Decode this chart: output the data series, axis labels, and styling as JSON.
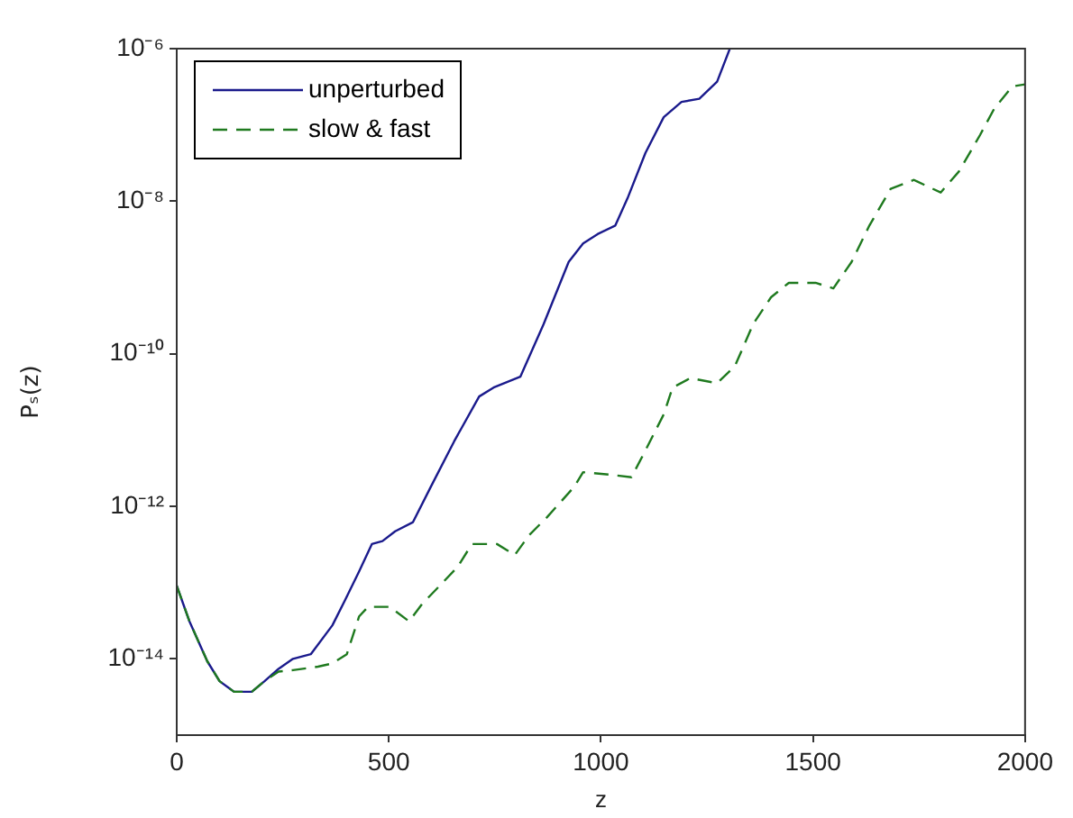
{
  "chart_data": {
    "type": "line",
    "xlabel": "z",
    "ylabel": "Pₛ(z)",
    "log": "y",
    "grid": false,
    "legend": "top left",
    "marker": "none",
    "xlim": [
      0,
      2000
    ],
    "xticks": [
      0,
      500,
      1000,
      1500,
      2000
    ],
    "ylim": [
      1e-15,
      1e-06
    ],
    "yticks": [
      {
        "value": 1e-14,
        "label": "10⁻¹⁴"
      },
      {
        "value": 1e-12,
        "label": "10⁻¹²"
      },
      {
        "value": 1e-10,
        "label": "10⁻¹⁰"
      },
      {
        "value": 1e-08,
        "label": "10⁻⁸"
      },
      {
        "value": 1e-06,
        "label": "10⁻⁶"
      }
    ],
    "series": [
      {
        "name": "unperturbed",
        "color": "#1a1a8c",
        "line_style": "solid",
        "x": [
          0,
          30,
          72,
          101,
          135,
          177,
          207,
          240,
          274,
          316,
          367,
          397,
          430,
          460,
          485,
          515,
          557,
          599,
          654,
          713,
          747,
          810,
          865,
          924,
          958,
          992,
          1034,
          1063,
          1105,
          1148,
          1190,
          1232,
          1274,
          1304
        ],
        "values": [
          9.1e-14,
          3.1e-14,
          9.3e-15,
          5.1e-15,
          3.7e-15,
          3.7e-15,
          5.1e-15,
          7.4e-15,
          1e-14,
          1.15e-14,
          2.75e-14,
          5.9e-14,
          1.4e-13,
          3.2e-13,
          3.5e-13,
          4.7e-13,
          6.2e-13,
          1.8e-12,
          7.1e-12,
          2.75e-11,
          3.6e-11,
          5e-11,
          2.45e-10,
          1.6e-09,
          2.8e-09,
          3.7e-09,
          4.8e-09,
          1.1e-08,
          4.3e-08,
          1.26e-07,
          2e-07,
          2.2e-07,
          3.7e-07,
          1e-06
        ]
      },
      {
        "name": "slow & fast",
        "color": "#1f7a1f",
        "line_style": "dashed",
        "x": [
          0,
          30,
          72,
          101,
          135,
          177,
          207,
          240,
          274,
          333,
          367,
          401,
          430,
          451,
          502,
          548,
          578,
          620,
          662,
          696,
          755,
          797,
          831,
          873,
          937,
          958,
          1021,
          1072,
          1105,
          1148,
          1169,
          1211,
          1274,
          1316,
          1359,
          1401,
          1443,
          1506,
          1548,
          1591,
          1633,
          1683,
          1738,
          1801,
          1844,
          1894,
          1928,
          1970,
          2000
        ],
        "values": [
          9.1e-14,
          3.1e-14,
          9.3e-15,
          5.1e-15,
          3.7e-15,
          3.7e-15,
          5.1e-15,
          6.8e-15,
          7.1e-15,
          7.9e-15,
          8.7e-15,
          1.15e-14,
          3.6e-14,
          4.8e-14,
          4.8e-14,
          3.1e-14,
          5.2e-14,
          9.1e-14,
          1.6e-13,
          3.2e-13,
          3.2e-13,
          2.3e-13,
          4.2e-13,
          7.2e-13,
          1.8e-12,
          2.8e-12,
          2.6e-12,
          2.4e-12,
          5.4e-12,
          1.6e-11,
          3.6e-11,
          4.8e-11,
          4.1e-11,
          6.9e-11,
          2.45e-10,
          5.5e-10,
          8.5e-10,
          8.5e-10,
          7.2e-10,
          1.6e-09,
          4.8e-09,
          1.45e-08,
          1.9e-08,
          1.3e-08,
          2.45e-08,
          7.4e-08,
          1.66e-07,
          3.2e-07,
          3.4e-07
        ]
      }
    ]
  }
}
